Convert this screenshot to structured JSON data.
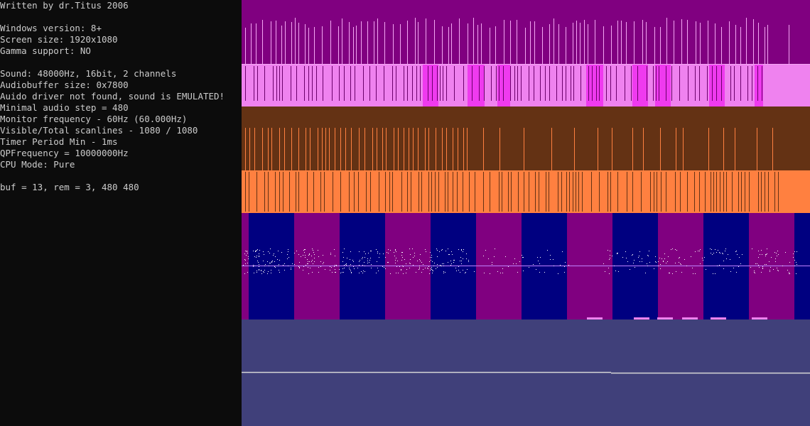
{
  "log": {
    "lines": [
      "Written by dr.Titus 2006",
      "",
      "Windows version: 8+",
      "Screen size: 1920x1080",
      "Gamma support: NO",
      "",
      "Sound: 48000Hz, 16bit, 2 channels",
      "Audiobuffer size: 0x7800",
      "Auido driver not found, sound is EMULATED!",
      "Minimal audio step = 480",
      "Monitor frequency - 60Hz (60.000Hz)",
      "Visible/Total scanlines - 1080 / 1080",
      "Timer Period Min - 1ms",
      "QPFrequency = 10000000Hz",
      "CPU Mode: Pure",
      "",
      "buf = 13, rem = 3, 480 480"
    ]
  },
  "colors": {
    "console_bg": "#0c0c0c",
    "console_text": "#cccccc",
    "band1_bg": "#800080",
    "band1_tick": "#f4a6f4",
    "band2_bg": "#ef82ef",
    "band2_tick": "#6a006a",
    "band2_highlight": "#ef3aef",
    "band3_bg": "#643214",
    "band3_tick": "#ff8040",
    "band4_bg": "#ff8040",
    "band4_tick": "#643214",
    "band5_a": "#800080",
    "band5_b": "#000080",
    "band5_dots": "#ffffff",
    "band6_bg": "#40407a",
    "band6_line": "#d6d6d6"
  }
}
